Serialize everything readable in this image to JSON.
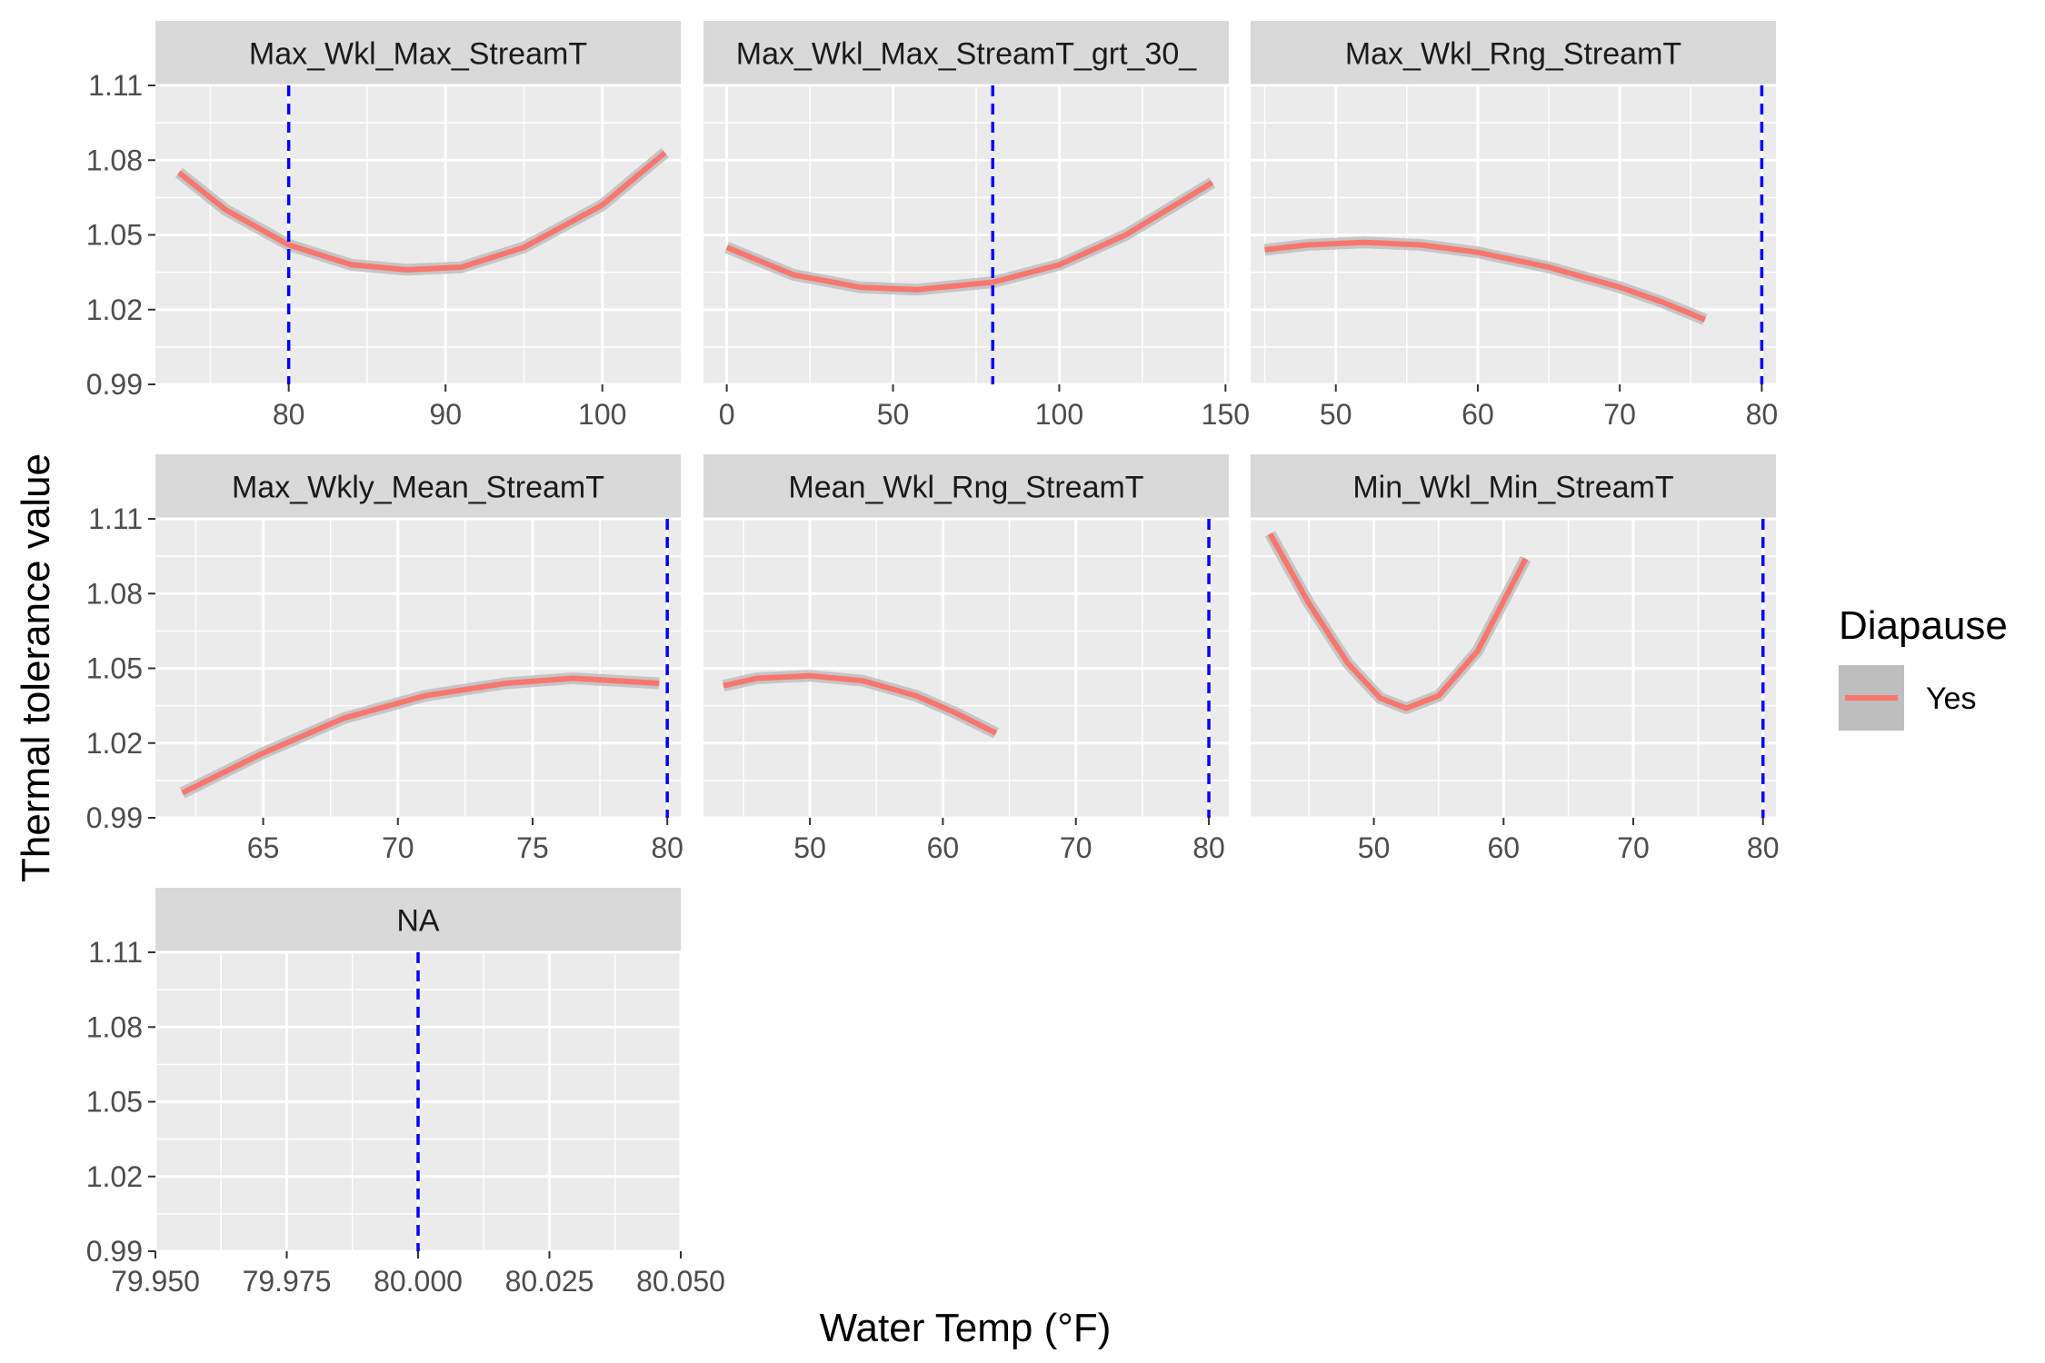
{
  "chart_data": {
    "type": "line",
    "xlabel": "Water Temp (°F)",
    "ylabel": "Thermal tolerance value",
    "y_ticks": [
      "0.99",
      "1.02",
      "1.05",
      "1.08",
      "1.11"
    ],
    "y_tick_values": [
      0.99,
      1.02,
      1.05,
      1.08,
      1.11
    ],
    "ylim": [
      0.99,
      1.11
    ],
    "grid": true,
    "legend": {
      "title": "Diapause",
      "entries": [
        "Yes"
      ],
      "placement": "right"
    },
    "colors": {
      "line": "#F8766D",
      "ribbon": "#BEBEBE",
      "vline": "#0000FF",
      "panel": "#EBEBEB",
      "strip": "#D9D9D9",
      "grid": "#FFFFFF"
    },
    "reference_line": {
      "x": 80,
      "style": "dashed"
    },
    "panels": [
      {
        "strip": "Max_Wkl_Max_StreamT",
        "xlim": [
          71.5,
          105
        ],
        "x_ticks": [
          80,
          90,
          100
        ],
        "x_tick_labels": [
          "80",
          "90",
          "100"
        ],
        "vline": 80,
        "series": {
          "name": "Yes",
          "x": [
            73,
            76,
            80,
            84,
            87.5,
            91,
            95,
            100,
            104
          ],
          "y": [
            1.075,
            1.06,
            1.046,
            1.038,
            1.036,
            1.037,
            1.045,
            1.062,
            1.083
          ]
        }
      },
      {
        "strip": "Max_Wkl_Max_StreamT_grt_30_",
        "xlim": [
          -7,
          151
        ],
        "x_ticks": [
          0,
          50,
          100,
          150
        ],
        "x_tick_labels": [
          "0",
          "50",
          "100",
          "150"
        ],
        "vline": 80,
        "series": {
          "name": "Yes",
          "x": [
            0,
            20,
            40,
            57,
            80,
            100,
            120,
            146
          ],
          "y": [
            1.045,
            1.034,
            1.029,
            1.028,
            1.031,
            1.038,
            1.05,
            1.071
          ]
        }
      },
      {
        "strip": "Max_Wkl_Rng_StreamT",
        "xlim": [
          44,
          81
        ],
        "x_ticks": [
          50,
          60,
          70,
          80
        ],
        "x_tick_labels": [
          "50",
          "60",
          "70",
          "80"
        ],
        "vline": 80,
        "series": {
          "name": "Yes",
          "x": [
            45,
            48,
            52,
            56,
            60,
            65,
            70,
            73,
            76
          ],
          "y": [
            1.044,
            1.046,
            1.047,
            1.046,
            1.043,
            1.037,
            1.029,
            1.023,
            1.016
          ]
        }
      },
      {
        "strip": "Max_Wkly_Mean_StreamT",
        "xlim": [
          61,
          80.5
        ],
        "x_ticks": [
          65,
          70,
          75,
          80
        ],
        "x_tick_labels": [
          "65",
          "70",
          "75",
          "80"
        ],
        "vline": 80,
        "series": {
          "name": "Yes",
          "x": [
            62,
            65,
            68,
            71,
            74,
            76.5,
            79.7
          ],
          "y": [
            1.0,
            1.016,
            1.03,
            1.039,
            1.044,
            1.046,
            1.044
          ]
        }
      },
      {
        "strip": "Mean_Wkl_Rng_StreamT",
        "xlim": [
          42,
          81.5
        ],
        "x_ticks": [
          50,
          60,
          70,
          80
        ],
        "x_tick_labels": [
          "50",
          "60",
          "70",
          "80"
        ],
        "vline": 80,
        "series": {
          "name": "Yes",
          "x": [
            43.5,
            46,
            50,
            54,
            58,
            61,
            64
          ],
          "y": [
            1.043,
            1.046,
            1.047,
            1.045,
            1.039,
            1.032,
            1.024
          ]
        }
      },
      {
        "strip": "Min_Wkl_Min_StreamT",
        "xlim": [
          40.5,
          81
        ],
        "x_ticks": [
          50,
          60,
          70,
          80
        ],
        "x_tick_labels": [
          "50",
          "60",
          "70",
          "80"
        ],
        "vline": 80,
        "series": {
          "name": "Yes",
          "x": [
            42,
            45,
            48,
            50.5,
            52.5,
            55,
            58,
            61.7
          ],
          "y": [
            1.104,
            1.076,
            1.052,
            1.038,
            1.034,
            1.039,
            1.057,
            1.094
          ]
        }
      },
      {
        "strip": "NA",
        "xlim": [
          79.95,
          80.05
        ],
        "x_ticks": [
          79.95,
          79.975,
          80.0,
          80.025,
          80.05
        ],
        "x_tick_labels": [
          "79.950",
          "79.975",
          "80.000",
          "80.025",
          "80.050"
        ],
        "vline": 80,
        "series": null
      }
    ]
  }
}
